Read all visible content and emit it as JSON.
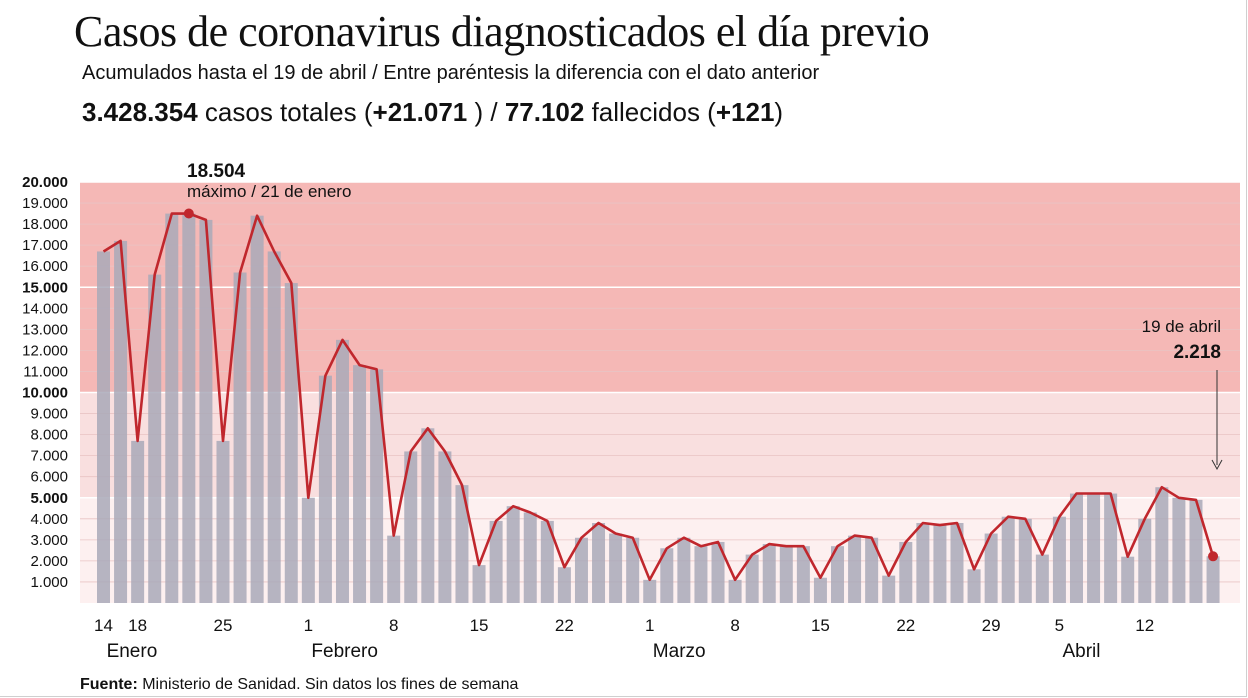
{
  "header": {
    "title": "Casos de coronavirus diagnosticados el día previo",
    "subtitle": "Acumulados hasta el 19 de abril / Entre paréntesis la diferencia con el dato anterior",
    "total_cases": "3.428.354",
    "total_cases_label": " casos totales (",
    "cases_diff": "+21.071",
    "mid_sep": " ) / ",
    "deaths": "77.102",
    "deaths_label": " fallecidos (",
    "deaths_diff": "+121",
    "close_paren": ")"
  },
  "source": {
    "label": "Fuente:",
    "text": " Ministerio de Sanidad. Sin datos los fines de semana"
  },
  "colors": {
    "band_high": "#f5b8b6",
    "band_mid": "#f9dfdf",
    "band_low": "#fdf0f0",
    "bar": "#a9a9b9",
    "line": "#c0272d"
  },
  "chart_data": {
    "type": "bar",
    "title": "Casos de coronavirus diagnosticados el día previo",
    "ylim": [
      0,
      20000
    ],
    "yticks": [
      "1.000",
      "2.000",
      "3.000",
      "4.000",
      "5.000",
      "6.000",
      "7.000",
      "8.000",
      "9.000",
      "10.000",
      "11.000",
      "12.000",
      "13.000",
      "14.000",
      "15.000",
      "16.000",
      "17.000",
      "18.000",
      "19.000",
      "20.000"
    ],
    "ytick_values": [
      1000,
      2000,
      3000,
      4000,
      5000,
      6000,
      7000,
      8000,
      9000,
      10000,
      11000,
      12000,
      13000,
      14000,
      15000,
      16000,
      17000,
      18000,
      19000,
      20000
    ],
    "bands": [
      {
        "from": 10000,
        "to": 20000,
        "level": "high"
      },
      {
        "from": 5000,
        "to": 10000,
        "level": "mid"
      },
      {
        "from": 0,
        "to": 5000,
        "level": "low"
      }
    ],
    "xticks": [
      {
        "label": "14",
        "index": 0
      },
      {
        "label": "18",
        "index": 2
      },
      {
        "label": "25",
        "index": 7
      },
      {
        "label": "1",
        "index": 12
      },
      {
        "label": "8",
        "index": 17
      },
      {
        "label": "15",
        "index": 22
      },
      {
        "label": "22",
        "index": 27
      },
      {
        "label": "1",
        "index": 32
      },
      {
        "label": "8",
        "index": 37
      },
      {
        "label": "15",
        "index": 42
      },
      {
        "label": "22",
        "index": 47
      },
      {
        "label": "29",
        "index": 52
      },
      {
        "label": "5",
        "index": 56
      },
      {
        "label": "12",
        "index": 61
      }
    ],
    "months": [
      {
        "label": "Enero",
        "index": 1
      },
      {
        "label": "Febrero",
        "index": 13
      },
      {
        "label": "Marzo",
        "index": 33
      },
      {
        "label": "Abril",
        "index": 57
      }
    ],
    "values": [
      16700,
      17200,
      7700,
      15600,
      18500,
      18504,
      18200,
      7700,
      15700,
      18400,
      16700,
      15200,
      5000,
      10800,
      12500,
      11300,
      11100,
      3200,
      7200,
      8300,
      7200,
      5600,
      1800,
      3900,
      4600,
      4300,
      3900,
      1700,
      3100,
      3800,
      3300,
      3100,
      1100,
      2600,
      3100,
      2700,
      2900,
      1100,
      2300,
      2800,
      2700,
      2700,
      1200,
      2700,
      3200,
      3100,
      1300,
      2900,
      3800,
      3700,
      3800,
      1600,
      3300,
      4100,
      4000,
      2300,
      4100,
      5200,
      5200,
      5200,
      2200,
      4000,
      5500,
      5000,
      4900,
      2218
    ],
    "peak": {
      "value_label": "18.504",
      "caption": "máximo / 21 de enero",
      "index": 5
    },
    "last": {
      "date_label": "19 de abril",
      "value_label": "2.218",
      "index": 65
    }
  }
}
